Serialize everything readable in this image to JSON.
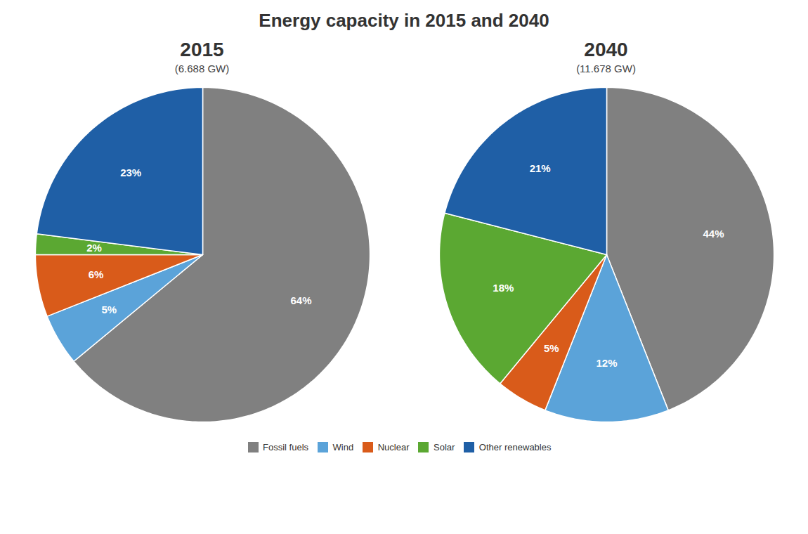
{
  "chart_data": {
    "type": "pie",
    "title": "Energy capacity in 2015 and 2040",
    "categories": [
      "Fossil fuels",
      "Wind",
      "Nuclear",
      "Solar",
      "Other renewables"
    ],
    "colors": [
      "#808080",
      "#5BA3D9",
      "#D95B1A",
      "#5BA832",
      "#1F5FA6"
    ],
    "series": [
      {
        "name": "2015",
        "subtitle": "(6.688 GW)",
        "values": [
          64,
          5,
          6,
          2,
          23
        ],
        "value_labels": [
          "64%",
          "5%",
          "6%",
          "2%",
          "23%"
        ]
      },
      {
        "name": "2040",
        "subtitle": "(11.678 GW)",
        "values": [
          44,
          12,
          5,
          18,
          21
        ],
        "value_labels": [
          "44%",
          "12%",
          "5%",
          "18%",
          "21%"
        ]
      }
    ],
    "data_labels": true,
    "legend": "bottom"
  }
}
